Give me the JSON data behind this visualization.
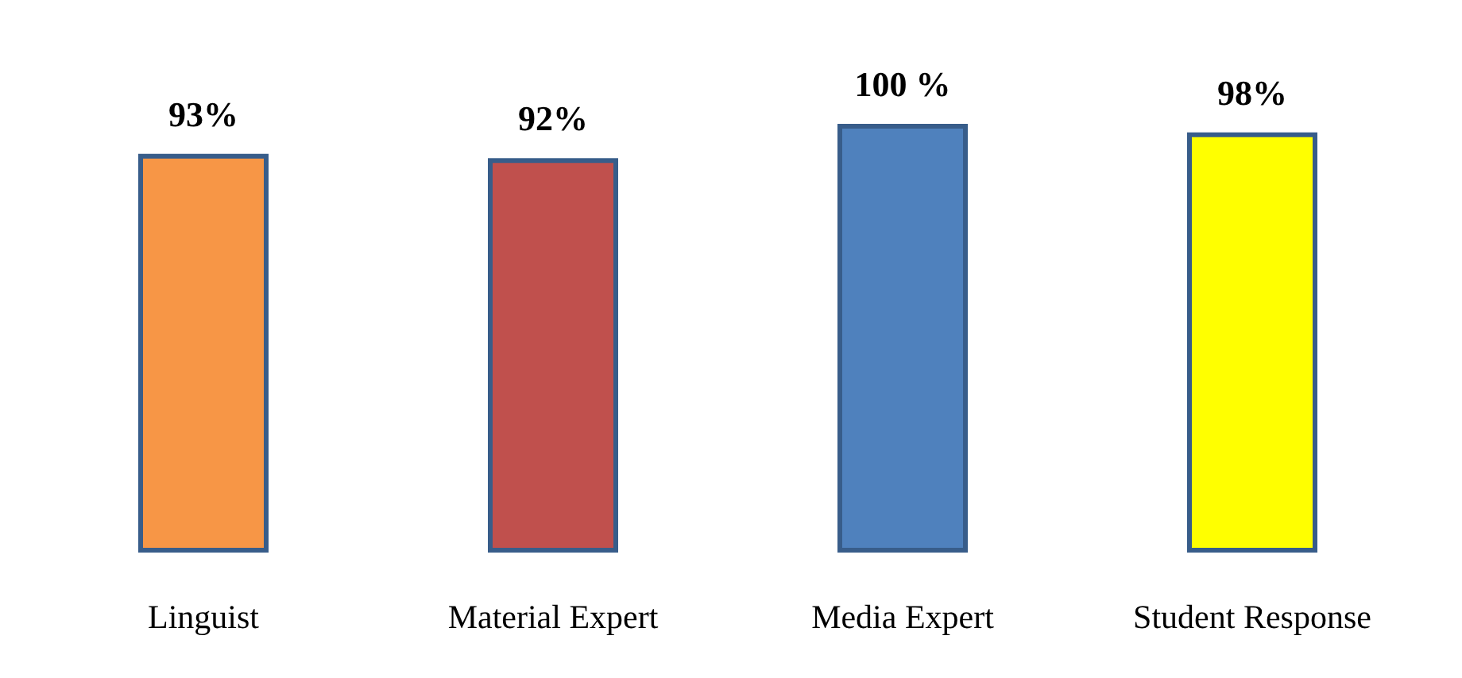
{
  "chart_data": {
    "type": "bar",
    "categories": [
      "Linguist",
      "Material Expert",
      "Media Expert",
      "Student Response"
    ],
    "values": [
      93,
      92,
      100,
      98
    ],
    "colors": [
      "#f79646",
      "#c0504d",
      "#4f81bd",
      "#ffff00"
    ],
    "value_labels": [
      "93%",
      "92%",
      "100 %",
      "98%"
    ]
  }
}
